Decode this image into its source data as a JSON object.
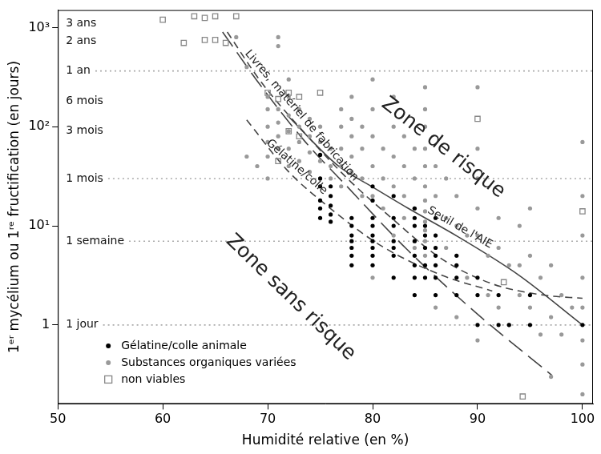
{
  "chart_data": {
    "type": "scatter",
    "x_label": "Humidité relative (en %)",
    "y_label": "1ᵉʳ mycélium ou 1ʳᵉ fructification (en jours)",
    "xlim": [
      50,
      101
    ],
    "xticks": [
      50,
      60,
      70,
      80,
      90,
      100
    ],
    "ylim": [
      0.16,
      1500
    ],
    "yticks": [
      1,
      {
        "value": 10,
        "label": "10¹"
      },
      {
        "value": 100,
        "label": "10²"
      },
      {
        "value": 1000,
        "label": "10³"
      }
    ],
    "log": "y",
    "grid": false,
    "legend": "lower left",
    "series": [
      {
        "name": "Gélatine/colle animale",
        "color": "#000000",
        "marker": "circle",
        "x": [
          75,
          75,
          75,
          75,
          75,
          75,
          76,
          76,
          76,
          76,
          76,
          78,
          78,
          78,
          78,
          78,
          78,
          78,
          80,
          80,
          80,
          80,
          80,
          80,
          80,
          80,
          80,
          82,
          82,
          82,
          82,
          82,
          82,
          82,
          84,
          84,
          84,
          84,
          84,
          84,
          84,
          84,
          85,
          85,
          85,
          85,
          85,
          86,
          86,
          86,
          86,
          86,
          86,
          86,
          88,
          88,
          88,
          88,
          90,
          90,
          90,
          92,
          92,
          93,
          95,
          95,
          100
        ],
        "values": [
          52,
          30,
          25,
          18,
          15,
          12,
          25,
          20,
          16,
          13,
          11,
          12,
          10,
          8,
          7,
          6,
          5,
          4,
          25,
          18,
          12,
          10,
          8,
          7,
          6,
          5,
          4,
          20,
          12,
          10,
          7,
          6,
          5,
          3,
          15,
          12,
          10,
          7,
          5,
          4,
          3,
          2,
          10,
          8,
          6,
          4,
          3,
          12,
          8,
          6,
          5,
          4,
          3,
          2,
          5,
          4,
          3,
          2,
          3,
          2,
          1,
          2,
          1,
          1,
          2,
          1,
          1
        ]
      },
      {
        "name": "Substances organiques variées",
        "color": "#999999",
        "marker": "circle",
        "x": [
          67,
          68,
          68,
          69,
          70,
          70,
          70,
          70,
          70,
          70,
          71,
          71,
          71,
          71,
          71,
          71,
          72,
          72,
          72,
          72,
          72,
          72,
          73,
          73,
          73,
          73,
          74,
          74,
          74,
          74,
          75,
          75,
          75,
          76,
          76,
          76,
          77,
          77,
          77,
          77,
          77,
          78,
          78,
          78,
          78,
          78,
          79,
          79,
          79,
          79,
          80,
          80,
          80,
          80,
          80,
          80,
          81,
          81,
          81,
          82,
          82,
          82,
          82,
          82,
          83,
          83,
          83,
          83,
          84,
          84,
          84,
          84,
          85,
          85,
          85,
          85,
          85,
          85,
          85,
          85,
          85,
          85,
          85,
          85,
          86,
          86,
          86,
          87,
          87,
          87,
          88,
          88,
          88,
          89,
          89,
          90,
          90,
          90,
          90,
          90,
          90,
          91,
          91,
          92,
          92,
          92,
          93,
          93,
          94,
          94,
          94,
          95,
          95,
          95,
          96,
          96,
          97,
          97,
          97,
          98,
          98,
          99,
          100,
          100,
          100,
          100,
          100,
          100,
          100,
          100
        ],
        "values": [
          800,
          400,
          50,
          40,
          200,
          150,
          100,
          70,
          50,
          30,
          800,
          650,
          150,
          110,
          80,
          60,
          300,
          200,
          130,
          90,
          60,
          40,
          150,
          100,
          70,
          45,
          120,
          80,
          55,
          35,
          100,
          70,
          45,
          60,
          40,
          30,
          150,
          100,
          60,
          40,
          25,
          200,
          120,
          80,
          50,
          35,
          100,
          60,
          30,
          20,
          300,
          150,
          80,
          40,
          20,
          3,
          60,
          30,
          15,
          200,
          100,
          50,
          25,
          8,
          80,
          40,
          20,
          12,
          60,
          30,
          15,
          6,
          250,
          150,
          100,
          60,
          40,
          25,
          18,
          14,
          11,
          9,
          7,
          5,
          40,
          20,
          1.5,
          30,
          12,
          6,
          20,
          10,
          1.2,
          8,
          3,
          250,
          60,
          30,
          15,
          8,
          0.7,
          5,
          2,
          12,
          6,
          1.5,
          4,
          1,
          10,
          4,
          2,
          15,
          5,
          1.5,
          3,
          0.8,
          4,
          1.2,
          0.3,
          2,
          0.8,
          1.5,
          70,
          20,
          8,
          3,
          1.5,
          0.7,
          0.4,
          0.2
        ]
      },
      {
        "name": "non viables",
        "color": "#888888",
        "marker": "open_square",
        "x": [
          60,
          62,
          63,
          64,
          64,
          65,
          65,
          66,
          67,
          70,
          71,
          71,
          72,
          72,
          73,
          73,
          75,
          90,
          92.5,
          94.3,
          100
        ],
        "values": [
          1200,
          700,
          1300,
          1250,
          750,
          1300,
          750,
          700,
          1300,
          220,
          190,
          45,
          220,
          90,
          200,
          80,
          220,
          120,
          2.7,
          0.19,
          14
        ]
      }
    ],
    "curves": [
      {
        "name": "Livres, matériel de fabrication",
        "type": "line",
        "line_style": "dashed",
        "color": "#444444",
        "x": [
          66.15,
          69.4,
          73.5,
          77.6,
          81.6,
          86.5,
          91.4,
          96.3,
          100
        ],
        "values": [
          900,
          280,
          87,
          30,
          12.5,
          4.7,
          2.6,
          2.0,
          1.86
        ]
      },
      {
        "name": "Gélatine/colle",
        "type": "line",
        "line_style": "dashed",
        "color": "#444444",
        "x": [
          68.0,
          71.9,
          75.9,
          80.8,
          86.5,
          91.4
        ],
        "values": [
          117,
          36,
          15.2,
          6.3,
          3.2,
          2.2
        ]
      },
      {
        "name": "Seuil de l'AIE",
        "type": "line",
        "line_style": "solid",
        "color": "#444444",
        "x": [
          71.9,
          76.75,
          80.0,
          83.3,
          88.2,
          93.9,
          100
        ],
        "values": [
          129,
          40,
          24.6,
          15.2,
          7.7,
          3.2,
          1
        ]
      },
      {
        "type": "line",
        "line_style": "long_dashed",
        "color": "#444444",
        "x": [
          65.7,
          69.4,
          73.5,
          77.6,
          83.3,
          89.8,
          97.1
        ],
        "values": [
          900,
          254,
          72,
          24.7,
          5.75,
          1.34,
          0.31
        ]
      }
    ],
    "reference_lines": [
      {
        "label": "1 an",
        "value": 365
      },
      {
        "label": "1 mois",
        "value": 30
      },
      {
        "label": "1 semaine",
        "value": 7
      },
      {
        "label": "1 jour",
        "value": 1
      }
    ],
    "time_labels": [
      {
        "label": "3 ans",
        "value": 1095
      },
      {
        "label": "2 ans",
        "value": 730
      },
      {
        "label": "6 mois",
        "value": 182
      },
      {
        "label": "3 mois",
        "value": 91
      }
    ],
    "annotations": [
      "Zone de risque",
      "Zone sans risque"
    ]
  }
}
